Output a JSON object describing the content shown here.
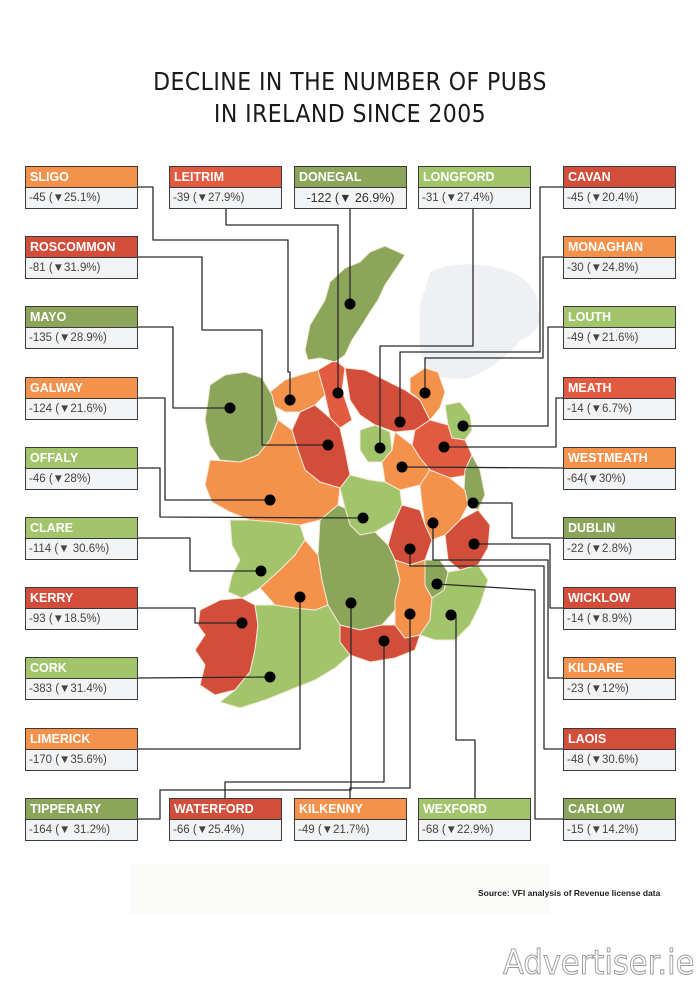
{
  "title": {
    "line1": "DECLINE IN THE NUMBER OF PUBS",
    "line2": "IN IRELAND SINCE 2005"
  },
  "colors": {
    "dark_red": "#d24e3a",
    "red": "#e25a40",
    "orange": "#f4914a",
    "light_green": "#a2c56b",
    "dark_green": "#8ba65a",
    "box_body": "#f2f3f5",
    "leader_line": "#2a2a2a",
    "dot": "#000000"
  },
  "chart_data": {
    "type": "choropleth-map",
    "title": "DECLINE IN THE NUMBER OF PUBS IN IRELAND SINCE 2005",
    "source": "Source: VFI analysis of Revenue license data",
    "unit_change": "pubs",
    "unit_pct": "%",
    "counties": [
      {
        "name": "SLIGO",
        "change": -45,
        "pct": 25.1,
        "label": "-45 (▼25.1%)",
        "color": "orange"
      },
      {
        "name": "LEITRIM",
        "change": -39,
        "pct": 27.9,
        "label": "-39 (▼27.9%)",
        "color": "red"
      },
      {
        "name": "DONEGAL",
        "change": -122,
        "pct": 26.9,
        "label": "-122 (▼ 26.9%)",
        "color": "dark_green"
      },
      {
        "name": "LONGFORD",
        "change": -31,
        "pct": 27.4,
        "label": "-31 (▼27.4%)",
        "color": "light_green"
      },
      {
        "name": "CAVAN",
        "change": -45,
        "pct": 20.4,
        "label": "-45 (▼20.4%)",
        "color": "dark_red"
      },
      {
        "name": "ROSCOMMON",
        "change": -81,
        "pct": 31.9,
        "label": "-81 (▼31.9%)",
        "color": "dark_red"
      },
      {
        "name": "MONAGHAN",
        "change": -30,
        "pct": 24.8,
        "label": "-30 (▼24.8%)",
        "color": "orange"
      },
      {
        "name": "MAYO",
        "change": -135,
        "pct": 28.9,
        "label": "-135 (▼28.9%)",
        "color": "dark_green"
      },
      {
        "name": "LOUTH",
        "change": -49,
        "pct": 21.6,
        "label": "-49 (▼21.6%)",
        "color": "light_green"
      },
      {
        "name": "GALWAY",
        "change": -124,
        "pct": 21.6,
        "label": "-124 (▼21.6%)",
        "color": "orange"
      },
      {
        "name": "MEATH",
        "change": -14,
        "pct": 6.7,
        "label": "-14 (▼6.7%)",
        "color": "red"
      },
      {
        "name": "OFFALY",
        "change": -46,
        "pct": 28,
        "label": "-46 (▼28%)",
        "color": "light_green"
      },
      {
        "name": "WESTMEATH",
        "change": -64,
        "pct": 30,
        "label": "-64(▼30%)",
        "color": "orange"
      },
      {
        "name": "CLARE",
        "change": -114,
        "pct": 30.6,
        "label": "-114 (▼ 30.6%)",
        "color": "light_green"
      },
      {
        "name": "DUBLIN",
        "change": -22,
        "pct": 2.8,
        "label": "-22 (▼2.8%)",
        "color": "dark_green"
      },
      {
        "name": "KERRY",
        "change": -93,
        "pct": 18.5,
        "label": "-93 (▼18.5%)",
        "color": "dark_red"
      },
      {
        "name": "WICKLOW",
        "change": -14,
        "pct": 8.9,
        "label": "-14 (▼8.9%)",
        "color": "dark_red"
      },
      {
        "name": "CORK",
        "change": -383,
        "pct": 31.4,
        "label": "-383 (▼31.4%)",
        "color": "light_green"
      },
      {
        "name": "KILDARE",
        "change": -23,
        "pct": 12,
        "label": "-23 (▼12%)",
        "color": "orange"
      },
      {
        "name": "LIMERICK",
        "change": -170,
        "pct": 35.6,
        "label": "-170 (▼35.6%)",
        "color": "orange"
      },
      {
        "name": "LAOIS",
        "change": -48,
        "pct": 30.6,
        "label": "-48 (▼30.6%)",
        "color": "dark_red"
      },
      {
        "name": "TIPPERARY",
        "change": -164,
        "pct": 31.2,
        "label": "-164 (▼ 31.2%)",
        "color": "dark_green"
      },
      {
        "name": "WATERFORD",
        "change": -66,
        "pct": 25.4,
        "label": "-66 (▼25.4%)",
        "color": "dark_red"
      },
      {
        "name": "KILKENNY",
        "change": -49,
        "pct": 21.7,
        "label": "-49 (▼21.7%)",
        "color": "orange"
      },
      {
        "name": "WEXFORD",
        "change": -68,
        "pct": 22.9,
        "label": "-68 (▼22.9%)",
        "color": "light_green"
      },
      {
        "name": "CARLOW",
        "change": -15,
        "pct": 14.2,
        "label": "-15 (▼14.2%)",
        "color": "dark_green"
      }
    ]
  },
  "footer": {
    "source": "Source: VFI analysis of Revenue license data",
    "watermark": "Advertiser.ie"
  }
}
